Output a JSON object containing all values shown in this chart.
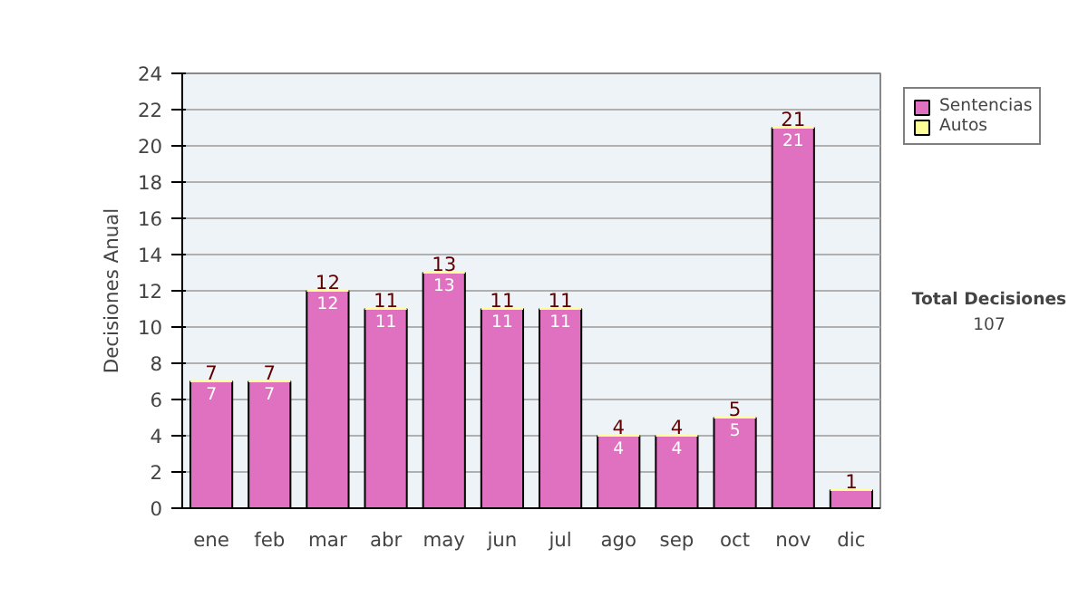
{
  "chart_data": {
    "type": "bar",
    "stacked": true,
    "ylabel": "Decisiones Anual",
    "categories": [
      "ene",
      "feb",
      "mar",
      "abr",
      "may",
      "jun",
      "jul",
      "ago",
      "sep",
      "oct",
      "nov",
      "dic"
    ],
    "series": [
      {
        "name": "Sentencias",
        "color": "#e070c0",
        "values": [
          7,
          7,
          12,
          11,
          13,
          11,
          11,
          4,
          4,
          5,
          21,
          1
        ],
        "value_labels": [
          "7",
          "7",
          "12",
          "11",
          "13",
          "11",
          "11",
          "4",
          "4",
          "5",
          "21",
          null
        ]
      },
      {
        "name": "Autos",
        "color": "#ffff99",
        "values": [
          0,
          0,
          0,
          0,
          0,
          0,
          0,
          0,
          0,
          0,
          0,
          0
        ]
      }
    ],
    "totals": [
      "7",
      "7",
      "12",
      "11",
      "13",
      "11",
      "11",
      "4",
      "4",
      "5",
      "21",
      "1"
    ],
    "ylim": [
      0,
      24
    ],
    "yticks": [
      0,
      2,
      4,
      6,
      8,
      10,
      12,
      14,
      16,
      18,
      20,
      22,
      24
    ],
    "grid": "y",
    "legend": "right",
    "annotations": [
      "Total Decisiones",
      "107"
    ]
  }
}
